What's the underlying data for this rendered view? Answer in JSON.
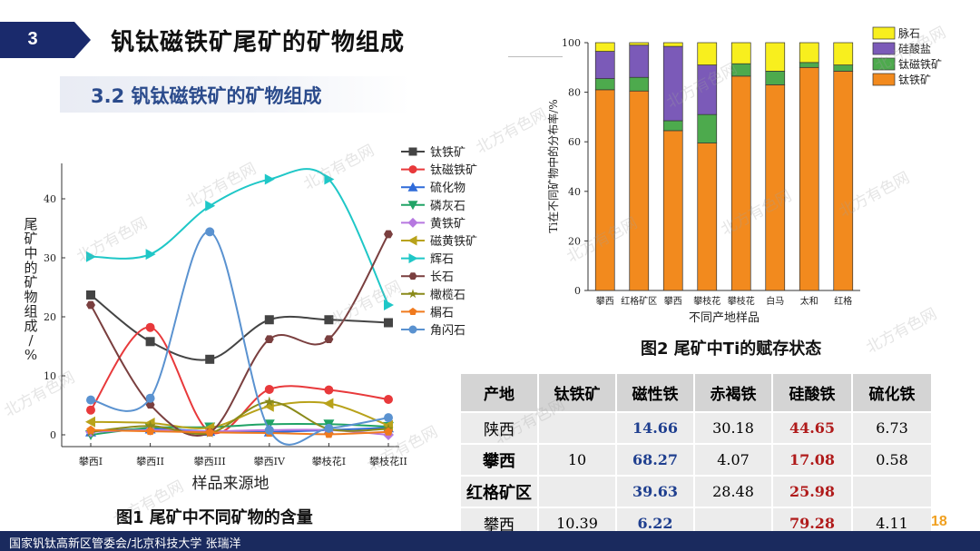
{
  "header": {
    "section_number": "3",
    "title": "钒钛磁铁矿尾矿的矿物组成",
    "subtitle": "3.2 钒钛磁铁矿的矿物组成"
  },
  "watermark_text": "北方有色网",
  "figure1": {
    "caption": "图1 尾矿中不同矿物的含量",
    "chart_data": {
      "type": "line",
      "title": "",
      "xlabel": "样品来源地",
      "ylabel": "尾矿中的矿物组成/%",
      "categories": [
        "攀西I",
        "攀西II",
        "攀西III",
        "攀西IV",
        "攀枝花I",
        "攀枝花II"
      ],
      "ylim": [
        -2,
        46
      ],
      "yticks": [
        "0",
        "10",
        "20",
        "30",
        "40"
      ],
      "series": [
        {
          "name": "钛铁矿",
          "color": "#444444",
          "marker": "square",
          "values": [
            23.7,
            15.8,
            12.8,
            19.5,
            19.5,
            19.0
          ]
        },
        {
          "name": "钛磁铁矿",
          "color": "#e8393b",
          "marker": "circle",
          "values": [
            4.2,
            18.2,
            0.5,
            7.7,
            7.6,
            6.0
          ]
        },
        {
          "name": "硫化物",
          "color": "#2f6bd9",
          "marker": "triangle-up",
          "values": [
            0.5,
            1.0,
            0.6,
            0.5,
            0.8,
            1.2
          ]
        },
        {
          "name": "磷灰石",
          "color": "#21a366",
          "marker": "triangle-down",
          "values": [
            0.0,
            1.2,
            1.3,
            1.8,
            1.8,
            1.4
          ]
        },
        {
          "name": "黄铁矿",
          "color": "#b678e0",
          "marker": "diamond",
          "values": [
            0.5,
            0.8,
            0.6,
            0.8,
            0.8,
            0.0
          ]
        },
        {
          "name": "磁黄铁矿",
          "color": "#b8a21a",
          "marker": "triangle-left",
          "values": [
            2.2,
            2.0,
            1.2,
            4.8,
            5.3,
            1.6
          ]
        },
        {
          "name": "辉石",
          "color": "#1fc7c7",
          "marker": "triangle-right",
          "values": [
            30.2,
            30.6,
            38.8,
            43.3,
            43.3,
            22.0
          ]
        },
        {
          "name": "长石",
          "color": "#7a3f3f",
          "marker": "hexagon",
          "values": [
            22.0,
            5.1,
            0.4,
            16.2,
            16.2,
            34.0
          ]
        },
        {
          "name": "橄榄石",
          "color": "#8a8a1a",
          "marker": "star",
          "values": [
            0.5,
            1.5,
            0.3,
            5.6,
            1.0,
            1.0
          ]
        },
        {
          "name": "榍石",
          "color": "#f07a1e",
          "marker": "pentagon",
          "values": [
            0.8,
            0.6,
            0.4,
            0.3,
            0.1,
            0.5
          ]
        },
        {
          "name": "角闪石",
          "color": "#5a92d0",
          "marker": "circle",
          "values": [
            5.9,
            6.2,
            34.4,
            0.8,
            1.1,
            2.9
          ]
        }
      ]
    }
  },
  "figure2": {
    "caption": "图2 尾矿中Ti的赋存状态",
    "chart_data": {
      "type": "bar",
      "stacked": true,
      "xlabel": "不同产地样品",
      "ylabel": "Ti在不同矿物中的分布率/%",
      "categories": [
        "攀西",
        "红格矿区",
        "攀西",
        "攀枝花",
        "攀枝花",
        "白马",
        "太和",
        "红格"
      ],
      "ylim": [
        0,
        100
      ],
      "yticks": [
        "0",
        "20",
        "40",
        "60",
        "80",
        "100"
      ],
      "series": [
        {
          "name": "钛铁矿",
          "color": "#f28a1e",
          "values": [
            81,
            80.5,
            64.5,
            59.5,
            86.5,
            83,
            90,
            88.5
          ]
        },
        {
          "name": "钛磁铁矿",
          "color": "#4daa4d",
          "values": [
            4.5,
            5.5,
            4.0,
            11.5,
            5.0,
            5.5,
            2.0,
            2.5
          ]
        },
        {
          "name": "硅酸盐",
          "color": "#7b5ab8",
          "values": [
            11,
            13,
            30,
            20,
            0,
            0,
            0,
            0
          ]
        },
        {
          "name": "脉石",
          "color": "#f8ef1e",
          "values": [
            3.5,
            1,
            1.5,
            9,
            8.5,
            11.5,
            8,
            9
          ]
        }
      ]
    }
  },
  "table": {
    "headers": [
      "产地",
      "钛铁矿",
      "磁性铁",
      "赤褐铁",
      "硅酸铁",
      "硫化铁"
    ],
    "rows": [
      [
        "陕西",
        "",
        "14.66",
        "30.18",
        "44.65",
        "6.73"
      ],
      [
        "攀西",
        "10",
        "68.27",
        "4.07",
        "17.08",
        "0.58"
      ],
      [
        "红格矿区",
        "",
        "39.63",
        "28.48",
        "25.98",
        ""
      ],
      [
        "攀西",
        "10.39",
        "6.22",
        "",
        "79.28",
        "4.11"
      ]
    ]
  },
  "page_number": "18",
  "footer": "国家钒钛高新区管委会/北京科技大学  张瑞洋"
}
